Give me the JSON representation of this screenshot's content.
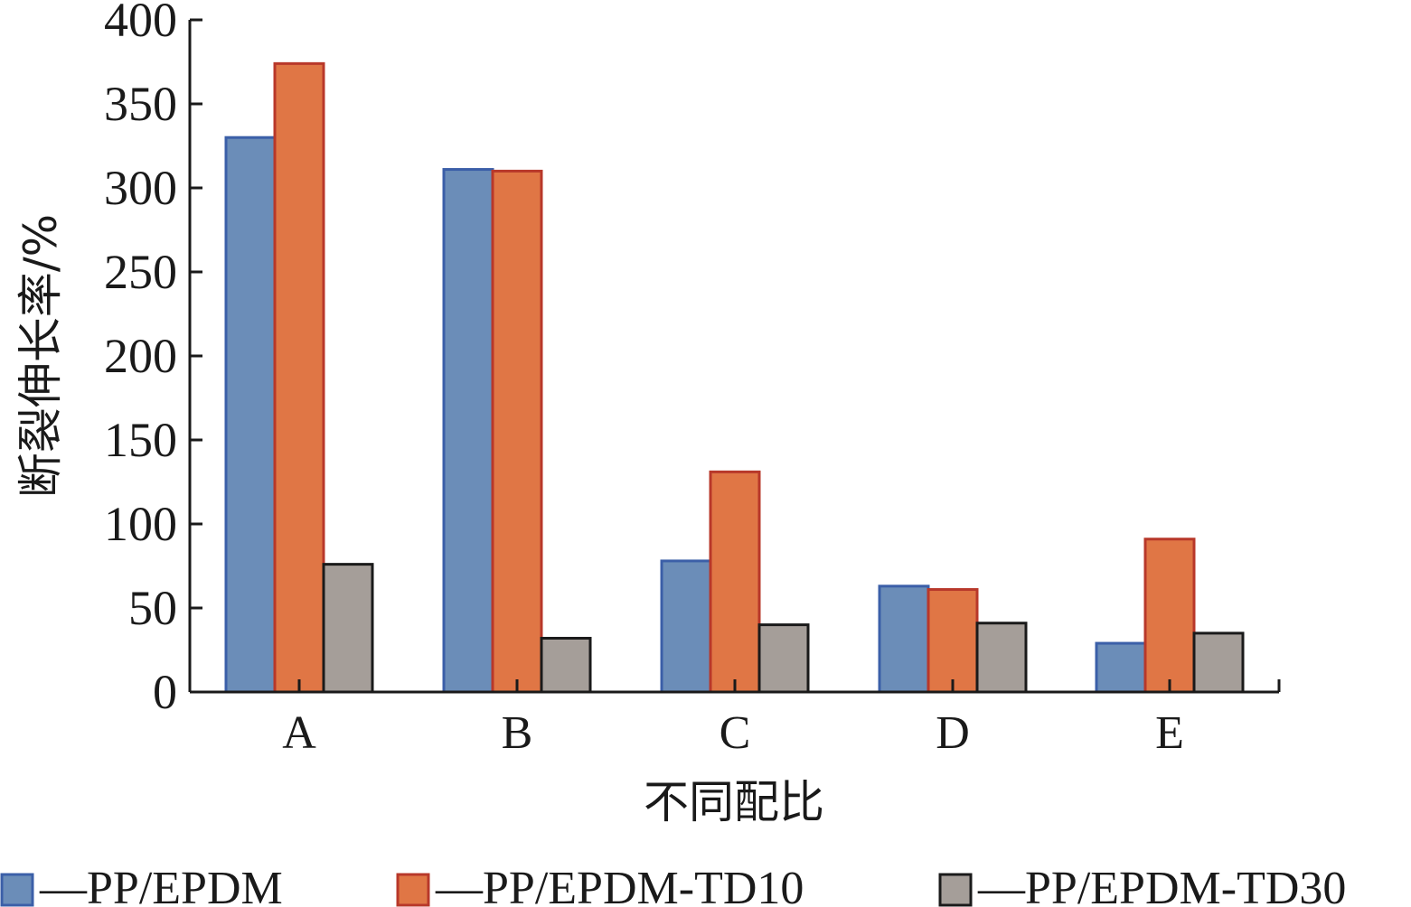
{
  "chart_data": {
    "type": "bar",
    "title": "",
    "xlabel": "不同配比",
    "ylabel": "断裂伸长率/%",
    "categories": [
      "A",
      "B",
      "C",
      "D",
      "E"
    ],
    "ylim": [
      0,
      400
    ],
    "yticks": [
      0,
      50,
      100,
      150,
      200,
      250,
      300,
      350,
      400
    ],
    "grid": false,
    "legend_position": "bottom",
    "series": [
      {
        "name": "—PP/EPDM",
        "color": "#6b8db8",
        "edge": "#3b5fa8",
        "values": [
          330,
          311,
          78,
          63,
          29
        ]
      },
      {
        "name": "—PP/EPDM-TD10",
        "color": "#e07645",
        "edge": "#b8382a",
        "values": [
          374,
          310,
          131,
          61,
          91
        ]
      },
      {
        "name": "—PP/EPDM-TD30",
        "color": "#a59e99",
        "edge": "#1a1a1a",
        "values": [
          76,
          32,
          40,
          41,
          35
        ]
      }
    ]
  }
}
